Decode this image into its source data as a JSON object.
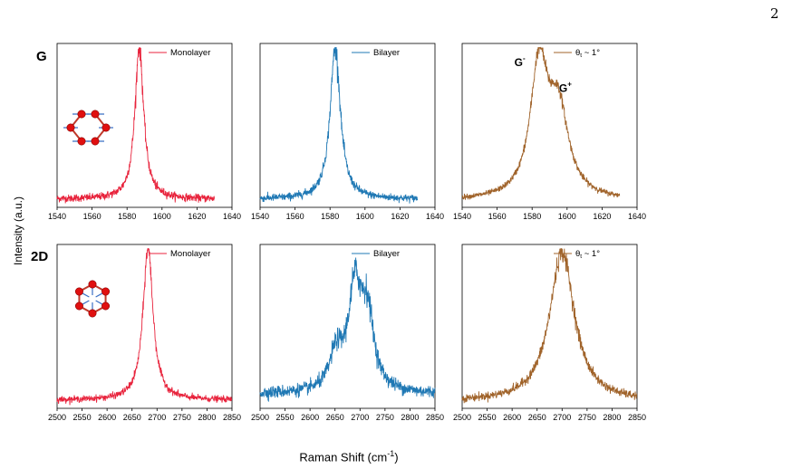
{
  "page": {
    "page_number": "2"
  },
  "figure": {
    "ylabel": "Intensity (a.u.)",
    "xlabel_main": "Raman Shift (cm",
    "xlabel_sup": "-1",
    "xlabel_end": ")",
    "row_labels": [
      "G",
      "2D"
    ]
  },
  "chart_data": [
    {
      "type": "line",
      "row": "G",
      "panel": "Monolayer",
      "legend": "Monolayer",
      "color": "#e8233c",
      "xlim": [
        1540,
        1640
      ],
      "ticks": [
        1540,
        1560,
        1580,
        1600,
        1620,
        1640
      ],
      "tick_labels": [
        "1540",
        "1560",
        "1580",
        "1600",
        "1620",
        "1640"
      ],
      "peaks": [
        {
          "center": 1587,
          "width": 3,
          "amp": 1.0
        }
      ],
      "x_range": [
        1540,
        1630
      ],
      "baseline": 0.03,
      "noise": 0.012,
      "legend_placement": "top-right",
      "inset": "G-mode-atoms-icon"
    },
    {
      "type": "line",
      "row": "G",
      "panel": "Bilayer",
      "legend": "Bilayer",
      "color": "#1f78b4",
      "xlim": [
        1540,
        1640
      ],
      "ticks": [
        1540,
        1560,
        1580,
        1600,
        1620,
        1640
      ],
      "tick_labels": [
        "1540",
        "1560",
        "1580",
        "1600",
        "1620",
        "1640"
      ],
      "peaks": [
        {
          "center": 1583,
          "width": 3.5,
          "amp": 1.0
        }
      ],
      "x_range": [
        1540,
        1630
      ],
      "baseline": 0.03,
      "noise": 0.012,
      "legend_placement": "top-right"
    },
    {
      "type": "line",
      "row": "G",
      "panel": "Twisted",
      "legend": "θ",
      "legend_sub": "t",
      "legend_rest": " ~ 1°",
      "color": "#a0632a",
      "xlim": [
        1540,
        1640
      ],
      "ticks": [
        1540,
        1560,
        1580,
        1600,
        1620,
        1640
      ],
      "tick_labels": [
        "1540",
        "1560",
        "1580",
        "1600",
        "1620",
        "1640"
      ],
      "peaks": [
        {
          "center": 1584,
          "width": 6,
          "amp": 0.85
        },
        {
          "center": 1595,
          "width": 7,
          "amp": 0.55
        }
      ],
      "x_range": [
        1540,
        1630
      ],
      "baseline": 0.02,
      "noise": 0.008,
      "legend_placement": "top-right",
      "annotations": [
        {
          "text": "G",
          "sup": "-",
          "x": 1573,
          "y": 0.9
        },
        {
          "text": "G",
          "sup": "+",
          "x": 1599,
          "y": 0.73
        }
      ]
    },
    {
      "type": "line",
      "row": "2D",
      "panel": "Monolayer",
      "legend": "Monolayer",
      "color": "#e8233c",
      "xlim": [
        2500,
        2850
      ],
      "ticks": [
        2500,
        2550,
        2600,
        2650,
        2700,
        2750,
        2800,
        2850
      ],
      "tick_labels": [
        "2500",
        "2550",
        "2600",
        "2650",
        "2700",
        "2750",
        "2800",
        "2850"
      ],
      "peaks": [
        {
          "center": 2682,
          "width": 12,
          "amp": 1.0
        }
      ],
      "x_range": [
        2500,
        2850
      ],
      "baseline": 0.03,
      "noise": 0.01,
      "legend_placement": "top-right",
      "inset": "2D-mode-atoms-icon"
    },
    {
      "type": "line",
      "row": "2D",
      "panel": "Bilayer",
      "legend": "Bilayer",
      "color": "#1f78b4",
      "xlim": [
        2500,
        2850
      ],
      "ticks": [
        2500,
        2550,
        2600,
        2650,
        2700,
        2750,
        2800,
        2850
      ],
      "tick_labels": [
        "2500",
        "2550",
        "2600",
        "2650",
        "2700",
        "2750",
        "2800",
        "2850"
      ],
      "peaks": [
        {
          "center": 2652,
          "width": 15,
          "amp": 0.22
        },
        {
          "center": 2690,
          "width": 17,
          "amp": 0.65
        },
        {
          "center": 2715,
          "width": 15,
          "amp": 0.45
        }
      ],
      "x_range": [
        2500,
        2850
      ],
      "baseline": 0.07,
      "noise": 0.02,
      "legend_placement": "top-right"
    },
    {
      "type": "line",
      "row": "2D",
      "panel": "Twisted",
      "legend": "θ",
      "legend_sub": "t",
      "legend_rest": " ~ 1°",
      "color": "#a0632a",
      "xlim": [
        2500,
        2850
      ],
      "ticks": [
        2500,
        2550,
        2600,
        2650,
        2700,
        2750,
        2800,
        2850
      ],
      "tick_labels": [
        "2500",
        "2550",
        "2600",
        "2650",
        "2700",
        "2750",
        "2800",
        "2850"
      ],
      "peaks": [
        {
          "center": 2700,
          "width": 30,
          "amp": 0.98
        }
      ],
      "x_range": [
        2500,
        2850
      ],
      "baseline": 0.02,
      "noise": 0.012,
      "legend_placement": "top-right"
    }
  ]
}
